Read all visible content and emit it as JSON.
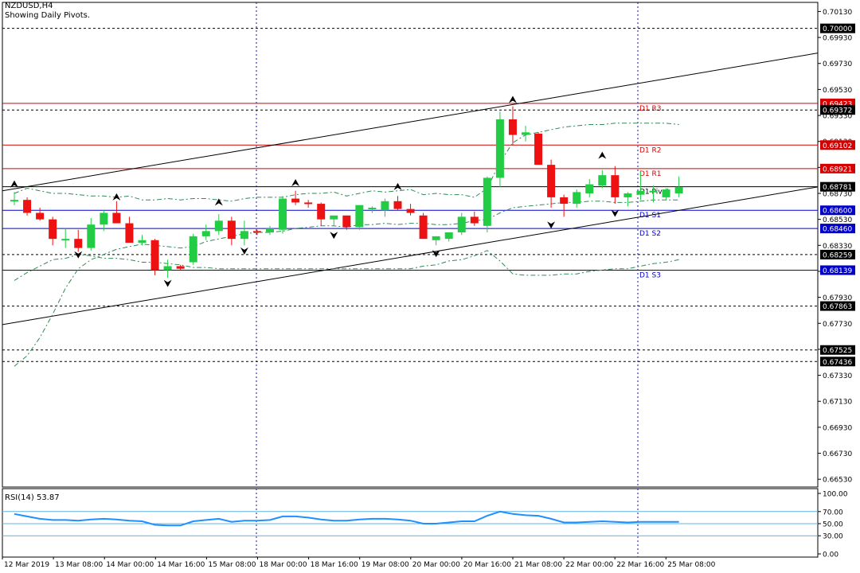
{
  "header": {
    "symbol": "NZDUSD,H4",
    "subtitle": "Showing Daily Pivots."
  },
  "colors": {
    "bull": "#22cc44",
    "bear": "#ee1111",
    "resistance": "#d40000",
    "support": "#0000c8",
    "pivot": "#000000",
    "envelope": "#2e8b57",
    "rsi": "#1e90ff",
    "grid": "#1010aa"
  },
  "chart_data": {
    "type": "candlestick",
    "price_axis": {
      "ticks": [
        "0.70130",
        "0.69930",
        "0.69730",
        "0.69530",
        "0.69330",
        "0.69130",
        "0.68930",
        "0.68730",
        "0.68530",
        "0.68330",
        "0.68130",
        "0.67930",
        "0.67730",
        "0.67530",
        "0.67330",
        "0.67130",
        "0.66930",
        "0.66730",
        "0.66530"
      ],
      "range": [
        0.6647,
        0.702
      ]
    },
    "time_axis": [
      "12 Mar 2019",
      "13 Mar 08:00",
      "14 Mar 00:00",
      "14 Mar 16:00",
      "15 Mar 08:00",
      "18 Mar 00:00",
      "18 Mar 16:00",
      "19 Mar 08:00",
      "20 Mar 00:00",
      "20 Mar 16:00",
      "21 Mar 08:00",
      "22 Mar 00:00",
      "22 Mar 16:00",
      "25 Mar 08:00"
    ],
    "horizontal_levels": [
      {
        "label": "",
        "value": 0.7,
        "tag": "0.70000",
        "style": "dash",
        "kind": "level"
      },
      {
        "label": "D1 R3",
        "value": 0.69423,
        "tag": "0.69423",
        "style": "solid",
        "kind": "resistance"
      },
      {
        "label": "",
        "value": 0.69372,
        "tag": "0.69372",
        "style": "dash",
        "kind": "level"
      },
      {
        "label": "D1 R2",
        "value": 0.69102,
        "tag": "0.69102",
        "style": "solid",
        "kind": "resistance"
      },
      {
        "label": "D1 R1",
        "value": 0.68921,
        "tag": "0.68921",
        "style": "solid",
        "kind": "resistance"
      },
      {
        "label": "D1 Pivot",
        "value": 0.68781,
        "tag": "0.68781",
        "style": "solid",
        "kind": "pivot"
      },
      {
        "label": "D1 S1",
        "value": 0.686,
        "tag": "0.68600",
        "style": "solid",
        "kind": "support"
      },
      {
        "label": "D1 S2",
        "value": 0.6846,
        "tag": "0.68460",
        "style": "solid",
        "kind": "support"
      },
      {
        "label": "",
        "value": 0.68259,
        "tag": "0.68259",
        "style": "dash",
        "kind": "level"
      },
      {
        "label": "D1 S3",
        "value": 0.68139,
        "tag": "0.68139",
        "style": "solid",
        "kind": "support"
      },
      {
        "label": "",
        "value": 0.67863,
        "tag": "0.67863",
        "style": "dash",
        "kind": "level"
      },
      {
        "label": "",
        "value": 0.67525,
        "tag": "0.67525",
        "style": "dash",
        "kind": "level"
      },
      {
        "label": "",
        "value": 0.67436,
        "tag": "0.67436",
        "style": "dash",
        "kind": "level"
      }
    ],
    "candles": [
      [
        0.6868,
        0.6874,
        0.6864,
        0.6868
      ],
      [
        0.6868,
        0.687,
        0.6856,
        0.6858
      ],
      [
        0.6858,
        0.6862,
        0.6852,
        0.6853
      ],
      [
        0.6853,
        0.6855,
        0.6833,
        0.6838
      ],
      [
        0.6838,
        0.6846,
        0.6831,
        0.6838
      ],
      [
        0.6838,
        0.6845,
        0.6828,
        0.6831
      ],
      [
        0.6831,
        0.6854,
        0.6829,
        0.6849
      ],
      [
        0.6849,
        0.686,
        0.6844,
        0.6858
      ],
      [
        0.6858,
        0.6867,
        0.685,
        0.685
      ],
      [
        0.685,
        0.6855,
        0.6835,
        0.6835
      ],
      [
        0.6835,
        0.6841,
        0.6833,
        0.6837
      ],
      [
        0.6837,
        0.6838,
        0.681,
        0.6814
      ],
      [
        0.6814,
        0.6822,
        0.6808,
        0.6817
      ],
      [
        0.6817,
        0.6818,
        0.6814,
        0.6815
      ],
      [
        0.682,
        0.6842,
        0.6818,
        0.684
      ],
      [
        0.684,
        0.6849,
        0.6837,
        0.6844
      ],
      [
        0.6844,
        0.6857,
        0.6841,
        0.6852
      ],
      [
        0.6852,
        0.6855,
        0.6833,
        0.6838
      ],
      [
        0.6838,
        0.6852,
        0.6833,
        0.6844
      ],
      [
        0.6844,
        0.6845,
        0.6841,
        0.6843
      ],
      [
        0.6843,
        0.6848,
        0.6841,
        0.6846
      ],
      [
        0.6845,
        0.6871,
        0.6842,
        0.6869
      ],
      [
        0.6869,
        0.6875,
        0.6864,
        0.6866
      ],
      [
        0.6866,
        0.6868,
        0.6862,
        0.6865
      ],
      [
        0.6865,
        0.6866,
        0.6848,
        0.6853
      ],
      [
        0.6853,
        0.6855,
        0.6848,
        0.6856
      ],
      [
        0.6856,
        0.6856,
        0.6845,
        0.6847
      ],
      [
        0.6847,
        0.6864,
        0.6845,
        0.6864
      ],
      [
        0.6861,
        0.6863,
        0.6858,
        0.6862
      ],
      [
        0.686,
        0.6869,
        0.6855,
        0.6867
      ],
      [
        0.6867,
        0.6871,
        0.686,
        0.6861
      ],
      [
        0.6861,
        0.6865,
        0.6856,
        0.6858
      ],
      [
        0.6856,
        0.6858,
        0.6838,
        0.6838
      ],
      [
        0.6837,
        0.684,
        0.6833,
        0.684
      ],
      [
        0.6838,
        0.6843,
        0.6836,
        0.6843
      ],
      [
        0.6843,
        0.6858,
        0.6841,
        0.6855
      ],
      [
        0.6855,
        0.6859,
        0.6848,
        0.685
      ],
      [
        0.6848,
        0.6886,
        0.6843,
        0.6885
      ],
      [
        0.6885,
        0.6936,
        0.6878,
        0.693
      ],
      [
        0.693,
        0.694,
        0.691,
        0.6918
      ],
      [
        0.6918,
        0.6925,
        0.6913,
        0.692
      ],
      [
        0.6919,
        0.692,
        0.6895,
        0.6895
      ],
      [
        0.6895,
        0.6899,
        0.6862,
        0.687
      ],
      [
        0.687,
        0.6872,
        0.6855,
        0.6865
      ],
      [
        0.6865,
        0.6876,
        0.6862,
        0.6874
      ],
      [
        0.6873,
        0.6884,
        0.687,
        0.688
      ],
      [
        0.6879,
        0.6891,
        0.6877,
        0.6887
      ],
      [
        0.6887,
        0.6894,
        0.6865,
        0.687
      ],
      [
        0.687,
        0.6874,
        0.6863,
        0.6873
      ],
      [
        0.6872,
        0.689,
        0.6868,
        0.6875
      ],
      [
        0.6875,
        0.6879,
        0.6866,
        0.6875
      ],
      [
        0.687,
        0.6877,
        0.6868,
        0.6876
      ],
      [
        0.6873,
        0.6886,
        0.687,
        0.6878
      ]
    ],
    "fractals": [
      {
        "i": 0,
        "dir": "up",
        "price": 0.688
      },
      {
        "i": 5,
        "dir": "down",
        "price": 0.6826
      },
      {
        "i": 8,
        "dir": "up",
        "price": 0.687
      },
      {
        "i": 12,
        "dir": "down",
        "price": 0.6804
      },
      {
        "i": 16,
        "dir": "up",
        "price": 0.6866
      },
      {
        "i": 18,
        "dir": "down",
        "price": 0.6829
      },
      {
        "i": 22,
        "dir": "up",
        "price": 0.6881
      },
      {
        "i": 25,
        "dir": "down",
        "price": 0.6841
      },
      {
        "i": 30,
        "dir": "up",
        "price": 0.6878
      },
      {
        "i": 33,
        "dir": "down",
        "price": 0.6827
      },
      {
        "i": 39,
        "dir": "up",
        "price": 0.6945
      },
      {
        "i": 42,
        "dir": "down",
        "price": 0.6849
      },
      {
        "i": 46,
        "dir": "up",
        "price": 0.6902
      },
      {
        "i": 47,
        "dir": "down",
        "price": 0.6858
      }
    ],
    "trendlines": [
      {
        "x1": 0,
        "y1": 0.6875,
        "x2": 53.8,
        "y2": 0.6981
      },
      {
        "x1": 0,
        "y1": 0.6772,
        "x2": 53.8,
        "y2": 0.6878
      }
    ],
    "envelope_upper": [
      0.6873,
      0.6877,
      0.6875,
      0.6873,
      0.6873,
      0.6872,
      0.6871,
      0.6871,
      0.687,
      0.6871,
      0.6868,
      0.6868,
      0.6869,
      0.6868,
      0.6869,
      0.6869,
      0.6868,
      0.6867,
      0.6869,
      0.687,
      0.687,
      0.687,
      0.6872,
      0.6873,
      0.6873,
      0.6874,
      0.6871,
      0.6873,
      0.6875,
      0.6874,
      0.6875,
      0.6876,
      0.6872,
      0.6873,
      0.6872,
      0.6872,
      0.687,
      0.6877,
      0.6897,
      0.6912,
      0.6918,
      0.692,
      0.6922,
      0.6924,
      0.6925,
      0.6926,
      0.6926,
      0.6927,
      0.6927,
      0.6927,
      0.6927,
      0.6927,
      0.6926
    ],
    "envelope_lower": [
      0.674,
      0.6748,
      0.6762,
      0.678,
      0.68,
      0.6815,
      0.6822,
      0.6826,
      0.683,
      0.6832,
      0.6834,
      0.6833,
      0.6832,
      0.6831,
      0.6832,
      0.6836,
      0.6838,
      0.684,
      0.6842,
      0.6843,
      0.6843,
      0.6844,
      0.6846,
      0.6847,
      0.6848,
      0.6848,
      0.6847,
      0.6849,
      0.6849,
      0.685,
      0.6849,
      0.685,
      0.685,
      0.6849,
      0.6849,
      0.685,
      0.6852,
      0.6853,
      0.6858,
      0.6862,
      0.6863,
      0.6864,
      0.6865,
      0.6866,
      0.6866,
      0.6867,
      0.6867,
      0.6866,
      0.6866,
      0.6867,
      0.6868,
      0.6868,
      0.6868
    ],
    "envelope_bottom": [
      0.6806,
      0.6812,
      0.6817,
      0.6822,
      0.6823,
      0.6826,
      0.6825,
      0.6823,
      0.6823,
      0.6822,
      0.682,
      0.682,
      0.6819,
      0.6818,
      0.6816,
      0.6816,
      0.6815,
      0.6815,
      0.6815,
      0.6815,
      0.6815,
      0.6815,
      0.6815,
      0.6815,
      0.6815,
      0.6815,
      0.6815,
      0.6815,
      0.6815,
      0.6815,
      0.6815,
      0.6815,
      0.6817,
      0.6818,
      0.6821,
      0.6822,
      0.6825,
      0.6829,
      0.6821,
      0.6811,
      0.681,
      0.681,
      0.681,
      0.6811,
      0.6811,
      0.6813,
      0.6814,
      0.6815,
      0.6815,
      0.6817,
      0.6819,
      0.682,
      0.6822
    ],
    "rsi": {
      "label": "RSI(14) 53.87",
      "ticks": [
        "100.00",
        "70.00",
        "50.00",
        "30.00",
        "0.00"
      ],
      "range": [
        0,
        100
      ],
      "values": [
        66,
        62,
        58,
        56,
        56,
        55,
        57,
        58,
        57,
        55,
        54,
        48,
        47,
        47,
        54,
        56,
        58,
        53,
        55,
        55,
        56,
        62,
        62,
        60,
        57,
        55,
        55,
        57,
        58,
        58,
        57,
        55,
        50,
        50,
        52,
        54,
        54,
        63,
        70,
        66,
        64,
        63,
        58,
        52,
        52,
        53,
        54,
        53,
        52,
        53,
        53,
        53,
        53
      ]
    }
  }
}
